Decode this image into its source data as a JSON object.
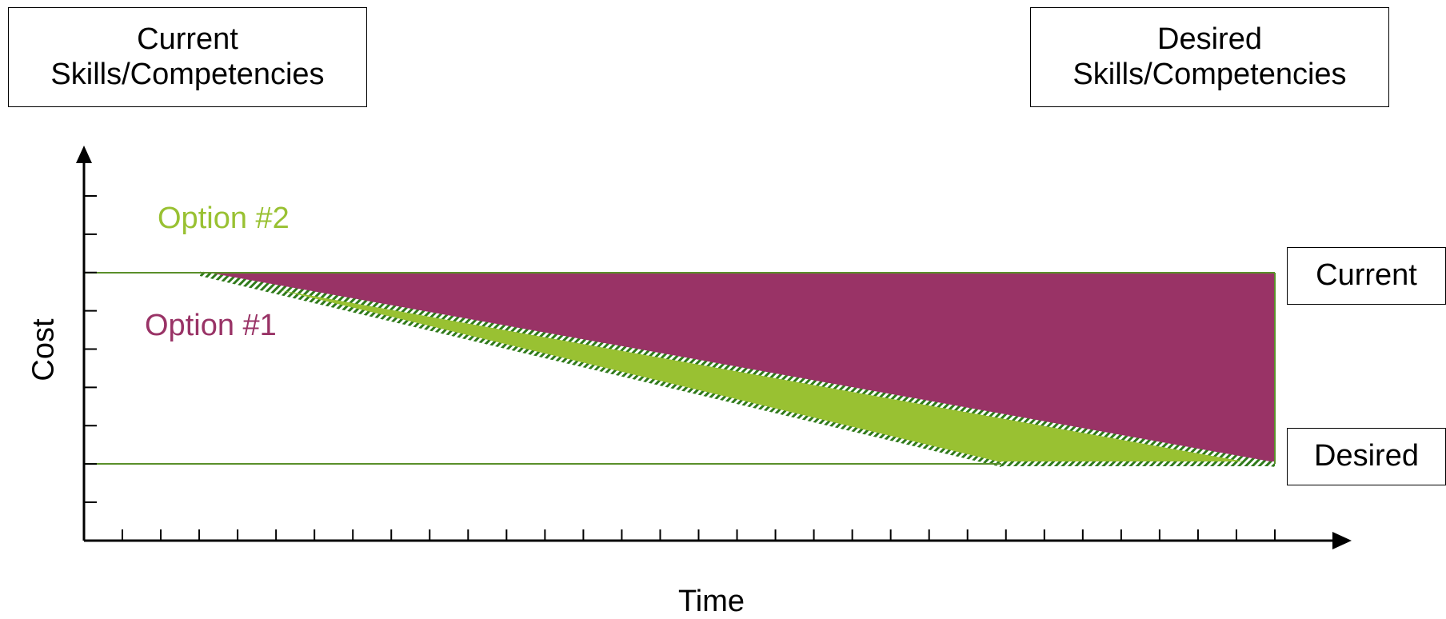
{
  "boxes": {
    "current_skills": [
      "Current",
      "Skills/Competencies"
    ],
    "desired_skills": [
      "Desired",
      "Skills/Competencies"
    ],
    "current_level": "Current",
    "desired_level": "Desired"
  },
  "options": {
    "option1": {
      "label": "Option #1",
      "color": "#993366"
    },
    "option2": {
      "label": "Option #2",
      "color": "#99c132"
    }
  },
  "axes": {
    "x_label": "Time",
    "y_label": "Cost",
    "x_tick_count": 31,
    "y_tick_count": 9
  },
  "line_color": "#5a8f2a",
  "axis_color": "#000000"
}
